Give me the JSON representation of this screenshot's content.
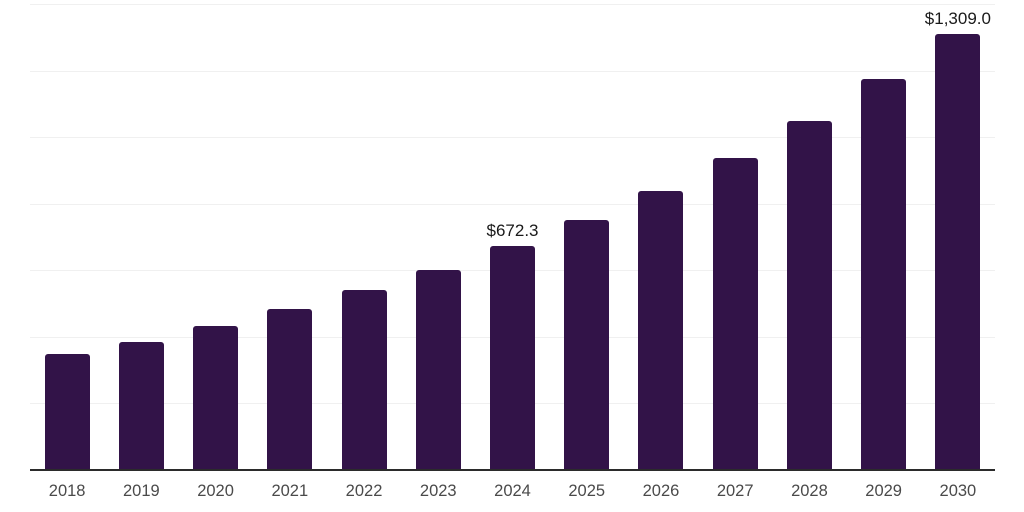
{
  "chart_data": {
    "type": "bar",
    "title": "",
    "xlabel": "",
    "ylabel": "",
    "categories": [
      "2018",
      "2019",
      "2020",
      "2021",
      "2022",
      "2023",
      "2024",
      "2025",
      "2026",
      "2027",
      "2028",
      "2029",
      "2030"
    ],
    "values": [
      347,
      385,
      433,
      483,
      540,
      602,
      672.3,
      751,
      839,
      937,
      1048,
      1175,
      1309
    ],
    "point_labels": [
      "",
      "",
      "",
      "",
      "",
      "",
      "$672.3",
      "",
      "",
      "",
      "",
      "",
      "$1,309.0"
    ],
    "ylim": [
      0,
      1400
    ],
    "gridline_step": 200,
    "grid": "horizontal",
    "legend": "none",
    "y_tick_labels_shown": false,
    "colors": {
      "bar": "#321348",
      "axis_line": "#2b2b2b",
      "gridline": "#f0f0f0",
      "tick_label": "#4a4a4a",
      "value_label": "#1a1a1a",
      "background": "#ffffff"
    }
  }
}
